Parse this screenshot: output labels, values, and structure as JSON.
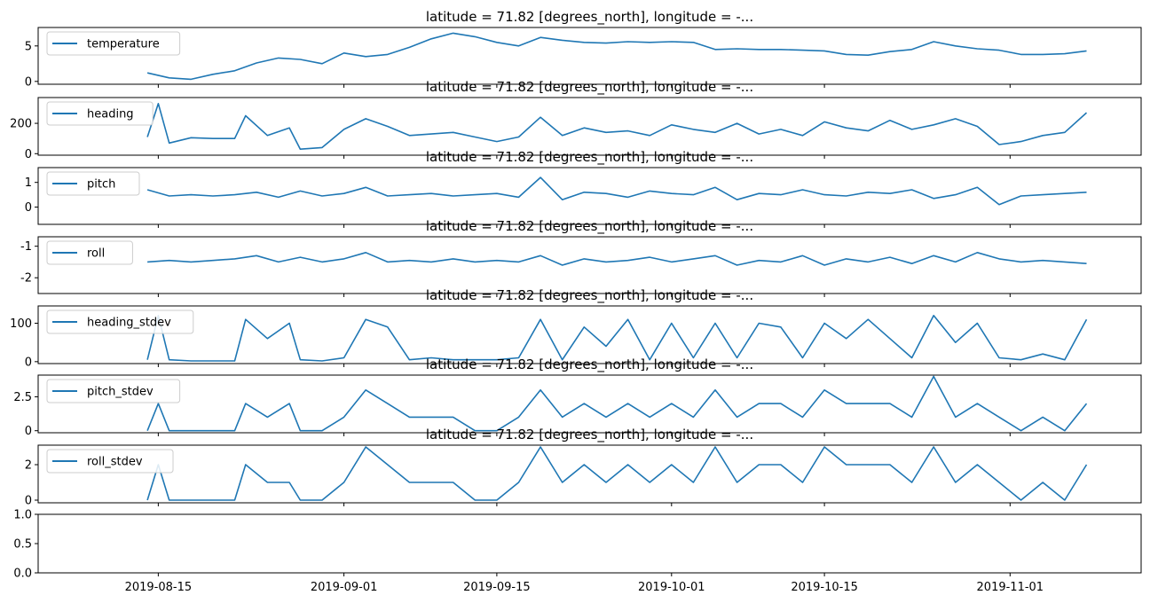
{
  "chart_data": [
    {
      "type": "line",
      "title": "latitude = 71.82 [degrees_north], longitude = -...",
      "xlabel": "",
      "ylabel": "",
      "ylim": [
        -0.4,
        7.6
      ],
      "yticks": [
        0,
        5
      ],
      "legend": "upper-left",
      "series": [
        {
          "name": "temperature",
          "color": "#1f77b4",
          "x": [
            "2019-08-14",
            "2019-08-16",
            "2019-08-18",
            "2019-08-20",
            "2019-08-22",
            "2019-08-24",
            "2019-08-26",
            "2019-08-28",
            "2019-08-30",
            "2019-09-01",
            "2019-09-03",
            "2019-09-05",
            "2019-09-07",
            "2019-09-09",
            "2019-09-11",
            "2019-09-13",
            "2019-09-15",
            "2019-09-17",
            "2019-09-19",
            "2019-09-21",
            "2019-09-23",
            "2019-09-25",
            "2019-09-27",
            "2019-09-29",
            "2019-10-01",
            "2019-10-03",
            "2019-10-05",
            "2019-10-07",
            "2019-10-09",
            "2019-10-11",
            "2019-10-13",
            "2019-10-15",
            "2019-10-17",
            "2019-10-19",
            "2019-10-21",
            "2019-10-23",
            "2019-10-25",
            "2019-10-27",
            "2019-10-29",
            "2019-10-31",
            "2019-11-02",
            "2019-11-04",
            "2019-11-06",
            "2019-11-08"
          ],
          "y": [
            1.2,
            0.5,
            0.3,
            1.0,
            1.5,
            2.6,
            3.3,
            3.1,
            2.5,
            4.0,
            3.5,
            3.8,
            4.8,
            6.0,
            6.8,
            6.3,
            5.5,
            5.0,
            6.2,
            5.8,
            5.5,
            5.4,
            5.6,
            5.5,
            5.6,
            5.5,
            4.5,
            4.6,
            4.5,
            4.5,
            4.4,
            4.3,
            3.8,
            3.7,
            4.2,
            4.5,
            5.6,
            5.0,
            4.6,
            4.4,
            3.8,
            3.8,
            3.9,
            4.3
          ]
        }
      ]
    },
    {
      "type": "line",
      "title": "latitude = 71.82 [degrees_north], longitude = -...",
      "xlabel": "",
      "ylabel": "",
      "ylim": [
        -10,
        370
      ],
      "yticks": [
        0,
        200
      ],
      "legend": "upper-left",
      "series": [
        {
          "name": "heading",
          "color": "#1f77b4",
          "x": [
            "2019-08-14",
            "2019-08-15",
            "2019-08-16",
            "2019-08-18",
            "2019-08-20",
            "2019-08-22",
            "2019-08-23",
            "2019-08-25",
            "2019-08-27",
            "2019-08-28",
            "2019-08-30",
            "2019-09-01",
            "2019-09-03",
            "2019-09-05",
            "2019-09-07",
            "2019-09-09",
            "2019-09-11",
            "2019-09-13",
            "2019-09-15",
            "2019-09-17",
            "2019-09-19",
            "2019-09-21",
            "2019-09-23",
            "2019-09-25",
            "2019-09-27",
            "2019-09-29",
            "2019-10-01",
            "2019-10-03",
            "2019-10-05",
            "2019-10-07",
            "2019-10-09",
            "2019-10-11",
            "2019-10-13",
            "2019-10-15",
            "2019-10-17",
            "2019-10-19",
            "2019-10-21",
            "2019-10-23",
            "2019-10-25",
            "2019-10-27",
            "2019-10-29",
            "2019-10-31",
            "2019-11-02",
            "2019-11-04",
            "2019-11-06",
            "2019-11-08"
          ],
          "y": [
            110,
            330,
            70,
            105,
            100,
            100,
            250,
            120,
            170,
            30,
            40,
            160,
            230,
            180,
            120,
            130,
            140,
            110,
            80,
            110,
            240,
            120,
            170,
            140,
            150,
            120,
            190,
            160,
            140,
            200,
            130,
            160,
            120,
            210,
            170,
            150,
            220,
            160,
            190,
            230,
            180,
            60,
            80,
            120,
            140,
            270
          ]
        }
      ]
    },
    {
      "type": "line",
      "title": "latitude = 71.82 [degrees_north], longitude = -...",
      "xlabel": "",
      "ylabel": "",
      "ylim": [
        -0.7,
        1.6
      ],
      "yticks": [
        0,
        1
      ],
      "legend": "upper-left",
      "series": [
        {
          "name": "pitch",
          "color": "#1f77b4",
          "x": [
            "2019-08-14",
            "2019-08-16",
            "2019-08-18",
            "2019-08-20",
            "2019-08-22",
            "2019-08-24",
            "2019-08-26",
            "2019-08-28",
            "2019-08-30",
            "2019-09-01",
            "2019-09-03",
            "2019-09-05",
            "2019-09-07",
            "2019-09-09",
            "2019-09-11",
            "2019-09-13",
            "2019-09-15",
            "2019-09-17",
            "2019-09-19",
            "2019-09-21",
            "2019-09-23",
            "2019-09-25",
            "2019-09-27",
            "2019-09-29",
            "2019-10-01",
            "2019-10-03",
            "2019-10-05",
            "2019-10-07",
            "2019-10-09",
            "2019-10-11",
            "2019-10-13",
            "2019-10-15",
            "2019-10-17",
            "2019-10-19",
            "2019-10-21",
            "2019-10-23",
            "2019-10-25",
            "2019-10-27",
            "2019-10-29",
            "2019-10-31",
            "2019-11-02",
            "2019-11-04",
            "2019-11-06",
            "2019-11-08"
          ],
          "y": [
            0.7,
            0.45,
            0.5,
            0.45,
            0.5,
            0.6,
            0.4,
            0.65,
            0.45,
            0.55,
            0.8,
            0.45,
            0.5,
            0.55,
            0.45,
            0.5,
            0.55,
            0.4,
            1.2,
            0.3,
            0.6,
            0.55,
            0.4,
            0.65,
            0.55,
            0.5,
            0.8,
            0.3,
            0.55,
            0.5,
            0.7,
            0.5,
            0.45,
            0.6,
            0.55,
            0.7,
            0.35,
            0.5,
            0.8,
            0.1,
            0.45,
            0.5,
            0.55,
            0.6
          ]
        }
      ]
    },
    {
      "type": "line",
      "title": "latitude = 71.82 [degrees_north], longitude = -...",
      "xlabel": "",
      "ylabel": "",
      "ylim": [
        -2.5,
        -0.7
      ],
      "yticks": [
        -2,
        -1
      ],
      "legend": "upper-left",
      "series": [
        {
          "name": "roll",
          "color": "#1f77b4",
          "x": [
            "2019-08-14",
            "2019-08-16",
            "2019-08-18",
            "2019-08-20",
            "2019-08-22",
            "2019-08-24",
            "2019-08-26",
            "2019-08-28",
            "2019-08-30",
            "2019-09-01",
            "2019-09-03",
            "2019-09-05",
            "2019-09-07",
            "2019-09-09",
            "2019-09-11",
            "2019-09-13",
            "2019-09-15",
            "2019-09-17",
            "2019-09-19",
            "2019-09-21",
            "2019-09-23",
            "2019-09-25",
            "2019-09-27",
            "2019-09-29",
            "2019-10-01",
            "2019-10-03",
            "2019-10-05",
            "2019-10-07",
            "2019-10-09",
            "2019-10-11",
            "2019-10-13",
            "2019-10-15",
            "2019-10-17",
            "2019-10-19",
            "2019-10-21",
            "2019-10-23",
            "2019-10-25",
            "2019-10-27",
            "2019-10-29",
            "2019-10-31",
            "2019-11-02",
            "2019-11-04",
            "2019-11-06",
            "2019-11-08"
          ],
          "y": [
            -1.5,
            -1.45,
            -1.5,
            -1.45,
            -1.4,
            -1.3,
            -1.5,
            -1.35,
            -1.5,
            -1.4,
            -1.2,
            -1.5,
            -1.45,
            -1.5,
            -1.4,
            -1.5,
            -1.45,
            -1.5,
            -1.3,
            -1.6,
            -1.4,
            -1.5,
            -1.45,
            -1.35,
            -1.5,
            -1.4,
            -1.3,
            -1.6,
            -1.45,
            -1.5,
            -1.3,
            -1.6,
            -1.4,
            -1.5,
            -1.35,
            -1.55,
            -1.3,
            -1.5,
            -1.2,
            -1.4,
            -1.5,
            -1.45,
            -1.5,
            -1.55
          ]
        }
      ]
    },
    {
      "type": "line",
      "title": "latitude = 71.82 [degrees_north], longitude = -...",
      "xlabel": "",
      "ylabel": "",
      "ylim": [
        -5,
        145
      ],
      "yticks": [
        0,
        100
      ],
      "legend": "upper-left",
      "series": [
        {
          "name": "heading_stdev",
          "color": "#1f77b4",
          "x": [
            "2019-08-14",
            "2019-08-15",
            "2019-08-16",
            "2019-08-18",
            "2019-08-20",
            "2019-08-22",
            "2019-08-23",
            "2019-08-25",
            "2019-08-27",
            "2019-08-28",
            "2019-08-30",
            "2019-09-01",
            "2019-09-03",
            "2019-09-05",
            "2019-09-07",
            "2019-09-09",
            "2019-09-11",
            "2019-09-13",
            "2019-09-15",
            "2019-09-17",
            "2019-09-19",
            "2019-09-21",
            "2019-09-23",
            "2019-09-25",
            "2019-09-27",
            "2019-09-29",
            "2019-10-01",
            "2019-10-03",
            "2019-10-05",
            "2019-10-07",
            "2019-10-09",
            "2019-10-11",
            "2019-10-13",
            "2019-10-15",
            "2019-10-17",
            "2019-10-19",
            "2019-10-21",
            "2019-10-23",
            "2019-10-25",
            "2019-10-27",
            "2019-10-29",
            "2019-10-31",
            "2019-11-02",
            "2019-11-04",
            "2019-11-06",
            "2019-11-08"
          ],
          "y": [
            5,
            120,
            5,
            2,
            2,
            2,
            110,
            60,
            100,
            5,
            2,
            10,
            110,
            90,
            5,
            10,
            5,
            5,
            5,
            10,
            110,
            5,
            90,
            40,
            110,
            5,
            100,
            10,
            100,
            10,
            100,
            90,
            10,
            100,
            60,
            110,
            60,
            10,
            120,
            50,
            100,
            10,
            5,
            20,
            5,
            110
          ]
        }
      ]
    },
    {
      "type": "line",
      "title": "latitude = 71.82 [degrees_north], longitude = -...",
      "xlabel": "",
      "ylabel": "",
      "ylim": [
        -0.15,
        4.1
      ],
      "yticks": [
        0.0,
        2.5
      ],
      "legend": "upper-left",
      "series": [
        {
          "name": "pitch_stdev",
          "color": "#1f77b4",
          "x": [
            "2019-08-14",
            "2019-08-15",
            "2019-08-16",
            "2019-08-18",
            "2019-08-20",
            "2019-08-22",
            "2019-08-23",
            "2019-08-25",
            "2019-08-27",
            "2019-08-28",
            "2019-08-30",
            "2019-09-01",
            "2019-09-03",
            "2019-09-05",
            "2019-09-07",
            "2019-09-09",
            "2019-09-11",
            "2019-09-13",
            "2019-09-15",
            "2019-09-17",
            "2019-09-19",
            "2019-09-21",
            "2019-09-23",
            "2019-09-25",
            "2019-09-27",
            "2019-09-29",
            "2019-10-01",
            "2019-10-03",
            "2019-10-05",
            "2019-10-07",
            "2019-10-09",
            "2019-10-11",
            "2019-10-13",
            "2019-10-15",
            "2019-10-17",
            "2019-10-19",
            "2019-10-21",
            "2019-10-23",
            "2019-10-25",
            "2019-10-27",
            "2019-10-29",
            "2019-10-31",
            "2019-11-02",
            "2019-11-04",
            "2019-11-06",
            "2019-11-08"
          ],
          "y": [
            0,
            2,
            0,
            0,
            0,
            0,
            2,
            1,
            2,
            0,
            0,
            1,
            3,
            2,
            1,
            1,
            1,
            0,
            0,
            1,
            3,
            1,
            2,
            1,
            2,
            1,
            2,
            1,
            3,
            1,
            2,
            2,
            1,
            3,
            2,
            2,
            2,
            1,
            4,
            1,
            2,
            1,
            0,
            1,
            0,
            2
          ]
        }
      ]
    },
    {
      "type": "line",
      "title": "latitude = 71.82 [degrees_north], longitude = -...",
      "xlabel": "",
      "ylabel": "",
      "ylim": [
        -0.15,
        3.1
      ],
      "yticks": [
        0,
        2
      ],
      "legend": "upper-left",
      "series": [
        {
          "name": "roll_stdev",
          "color": "#1f77b4",
          "x": [
            "2019-08-14",
            "2019-08-15",
            "2019-08-16",
            "2019-08-18",
            "2019-08-20",
            "2019-08-22",
            "2019-08-23",
            "2019-08-25",
            "2019-08-27",
            "2019-08-28",
            "2019-08-30",
            "2019-09-01",
            "2019-09-03",
            "2019-09-05",
            "2019-09-07",
            "2019-09-09",
            "2019-09-11",
            "2019-09-13",
            "2019-09-15",
            "2019-09-17",
            "2019-09-19",
            "2019-09-21",
            "2019-09-23",
            "2019-09-25",
            "2019-09-27",
            "2019-09-29",
            "2019-10-01",
            "2019-10-03",
            "2019-10-05",
            "2019-10-07",
            "2019-10-09",
            "2019-10-11",
            "2019-10-13",
            "2019-10-15",
            "2019-10-17",
            "2019-10-19",
            "2019-10-21",
            "2019-10-23",
            "2019-10-25",
            "2019-10-27",
            "2019-10-29",
            "2019-10-31",
            "2019-11-02",
            "2019-11-04",
            "2019-11-06",
            "2019-11-08"
          ],
          "y": [
            0,
            2,
            0,
            0,
            0,
            0,
            2,
            1,
            1,
            0,
            0,
            1,
            3,
            2,
            1,
            1,
            1,
            0,
            0,
            1,
            3,
            1,
            2,
            1,
            2,
            1,
            2,
            1,
            3,
            1,
            2,
            2,
            1,
            3,
            2,
            2,
            2,
            1,
            3,
            1,
            2,
            1,
            0,
            1,
            0,
            2
          ]
        }
      ]
    },
    {
      "type": "line",
      "title": "",
      "xlabel": "",
      "ylabel": "",
      "ylim": [
        0.0,
        1.0
      ],
      "yticks": [
        "0.0",
        "0.5",
        "1.0"
      ],
      "xticks": [
        "2019-08-15",
        "2019-09-01",
        "2019-09-15",
        "2019-10-01",
        "2019-10-15",
        "2019-11-01"
      ],
      "series": []
    }
  ]
}
